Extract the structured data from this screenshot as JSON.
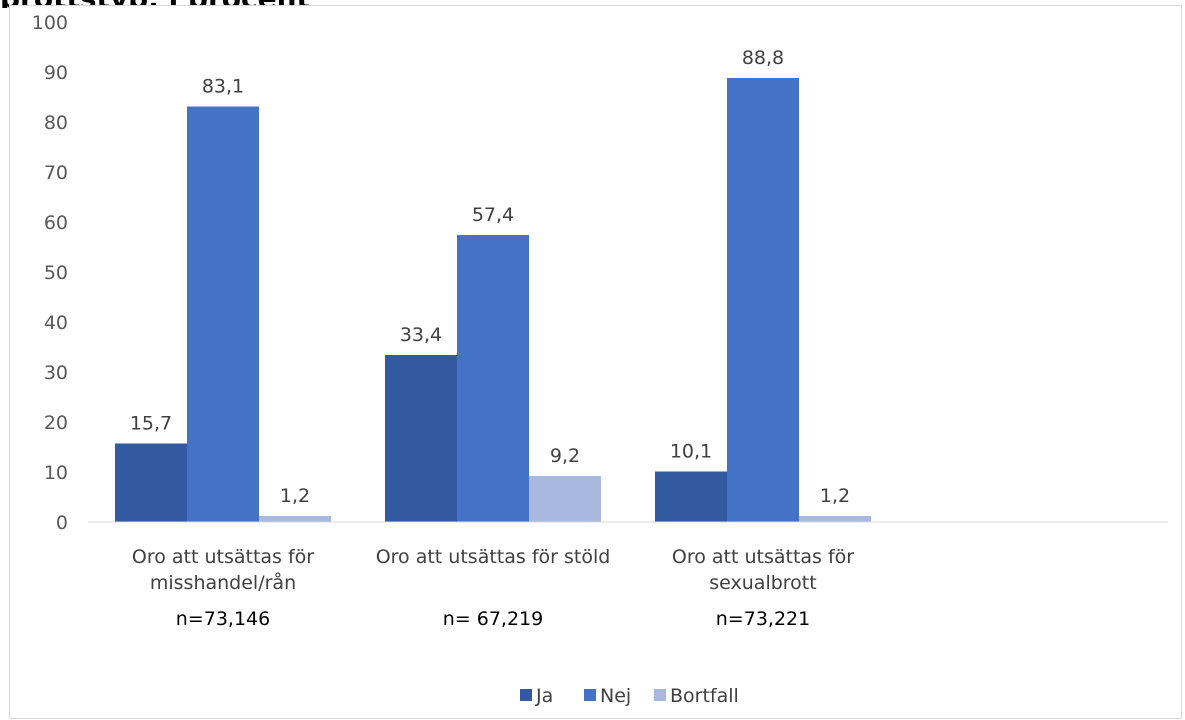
{
  "title_fragment": "brottstyp, i procent",
  "chart_data": {
    "type": "bar",
    "ylim": [
      0,
      100
    ],
    "yticks": [
      0,
      10,
      20,
      30,
      40,
      50,
      60,
      70,
      80,
      90,
      100
    ],
    "grid": false,
    "legend": "bottom",
    "categories": [
      {
        "lines": [
          "Oro att utsättas för",
          "misshandel/rån"
        ],
        "n": "n=73,146"
      },
      {
        "lines": [
          "Oro att utsättas för stöld"
        ],
        "n": "n= 67,219"
      },
      {
        "lines": [
          "Oro att utsättas för",
          "sexualbrott"
        ],
        "n": "n=73,221"
      }
    ],
    "series": [
      {
        "name": "Ja",
        "color": "#335aa1",
        "values": [
          15.7,
          33.4,
          10.1
        ],
        "labels": [
          "15,7",
          "33,4",
          "10,1"
        ]
      },
      {
        "name": "Nej",
        "color": "#4472c4",
        "values": [
          83.1,
          57.4,
          88.8
        ],
        "labels": [
          "83,1",
          "57,4",
          "88,8"
        ]
      },
      {
        "name": "Bortfall",
        "color": "#a9b8de",
        "values": [
          1.2,
          9.2,
          1.2
        ],
        "labels": [
          "1,2",
          "9,2",
          "1,2"
        ]
      }
    ]
  }
}
